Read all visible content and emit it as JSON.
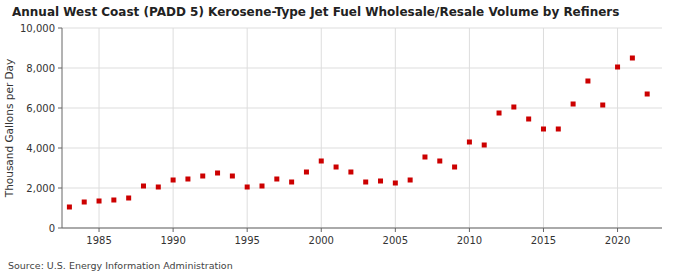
{
  "chart_data": {
    "type": "scatter",
    "title": "Annual West Coast (PADD 5) Kerosene-Type Jet Fuel Wholesale/Resale Volume by Refiners",
    "y_label": "Thousand Gallons per Day",
    "annotations": [
      "Source: U.S. Energy Information Administration"
    ],
    "x": [
      1983,
      1984,
      1985,
      1986,
      1987,
      1988,
      1989,
      1990,
      1991,
      1992,
      1993,
      1994,
      1995,
      1996,
      1997,
      1998,
      1999,
      2000,
      2001,
      2002,
      2003,
      2004,
      2005,
      2006,
      2007,
      2008,
      2009,
      2010,
      2011,
      2012,
      2013,
      2014,
      2015,
      2016,
      2017,
      2018,
      2019,
      2020,
      2021,
      2022
    ],
    "values": [
      1050,
      1300,
      1350,
      1400,
      1500,
      2100,
      2050,
      2400,
      2450,
      2600,
      2750,
      2600,
      2050,
      2100,
      2450,
      2300,
      2800,
      3350,
      3050,
      2800,
      2300,
      2350,
      2250,
      2400,
      3550,
      3350,
      3050,
      4300,
      4150,
      5750,
      6050,
      5450,
      4950,
      4950,
      6200,
      7350,
      6150,
      8050,
      8500,
      6700
    ],
    "color": "#cc0000",
    "marker": "square",
    "grid": true,
    "xlim": [
      1982.5,
      2023
    ],
    "xticks": [
      1985,
      1990,
      1995,
      2000,
      2005,
      2010,
      2015,
      2020
    ],
    "ylim": [
      0,
      10000
    ],
    "yticks": [
      0,
      {
        "value": 2000,
        "label": "2,000"
      },
      {
        "value": 4000,
        "label": "4,000"
      },
      {
        "value": 6000,
        "label": "6,000"
      },
      {
        "value": 8000,
        "label": "8,000"
      },
      {
        "value": 10000,
        "label": "10,000"
      }
    ]
  }
}
